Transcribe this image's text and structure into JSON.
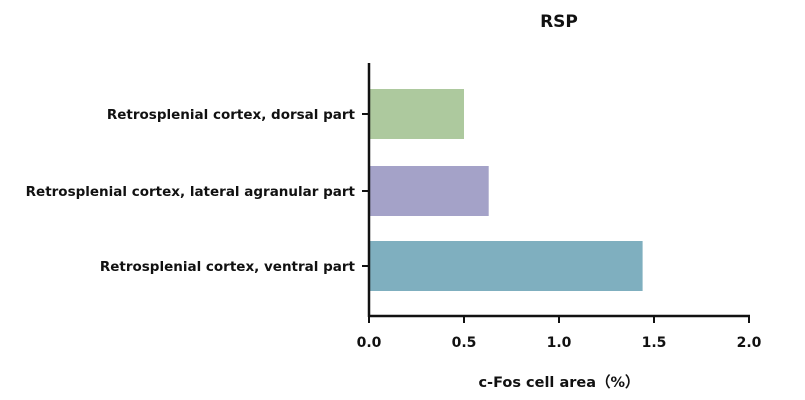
{
  "chart_data": {
    "type": "bar",
    "orientation": "horizontal",
    "title": "RSP",
    "xlabel": "c-Fos cell area（%）",
    "ylabel": "",
    "xlim": [
      0,
      2.0
    ],
    "xticks": [
      "0.0",
      "0.5",
      "1.0",
      "1.5",
      "2.0"
    ],
    "grid": false,
    "categories": [
      "Retrosplenial cortex, dorsal part",
      "Retrosplenial cortex, lateral agranular part",
      "Retrosplenial cortex, ventral part"
    ],
    "values": [
      0.5,
      0.63,
      1.44
    ],
    "colors": [
      "#adc99e",
      "#a4a2c8",
      "#7fafbf"
    ]
  }
}
